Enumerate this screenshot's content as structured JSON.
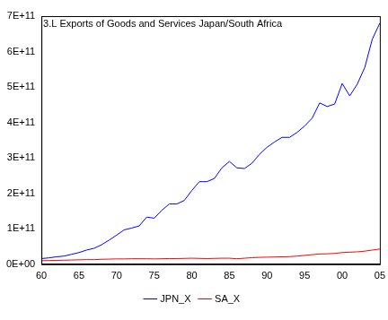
{
  "chart_data": {
    "type": "line",
    "title": "3.L Exports of Goods and Services Japan/South Africa",
    "categories": [
      "60",
      null,
      null,
      null,
      null,
      "65",
      null,
      null,
      null,
      null,
      "70",
      null,
      null,
      null,
      null,
      "75",
      null,
      null,
      null,
      null,
      "80",
      null,
      null,
      null,
      null,
      "85",
      null,
      null,
      null,
      null,
      "90",
      null,
      null,
      null,
      null,
      "95",
      null,
      null,
      null,
      null,
      "00",
      null,
      null,
      null,
      null,
      "05"
    ],
    "series": [
      {
        "name": "JPN_X",
        "color": "#0000ff",
        "values": [
          16000000000,
          18000000000,
          21000000000,
          23000000000,
          28000000000,
          33000000000,
          40000000000,
          45000000000,
          55000000000,
          68000000000,
          82000000000,
          97000000000,
          102000000000,
          108000000000,
          133000000000,
          130000000000,
          152000000000,
          170000000000,
          170000000000,
          180000000000,
          208000000000,
          233000000000,
          233000000000,
          242000000000,
          272000000000,
          290000000000,
          272000000000,
          270000000000,
          285000000000,
          310000000000,
          330000000000,
          345000000000,
          358000000000,
          358000000000,
          372000000000,
          390000000000,
          412000000000,
          455000000000,
          445000000000,
          452000000000,
          510000000000,
          475000000000,
          508000000000,
          555000000000,
          635000000000,
          680000000000
        ]
      },
      {
        "name": "SA_X",
        "color": "#ff0000",
        "values": [
          10000000000,
          10500000000,
          11000000000,
          11500000000,
          12000000000,
          12500000000,
          13000000000,
          13000000000,
          14000000000,
          14500000000,
          15000000000,
          15000000000,
          15500000000,
          15500000000,
          15500000000,
          15000000000,
          15500000000,
          16000000000,
          16000000000,
          16500000000,
          17000000000,
          16500000000,
          16000000000,
          16500000000,
          17000000000,
          17000000000,
          15500000000,
          17000000000,
          18500000000,
          19500000000,
          20000000000,
          20500000000,
          21000000000,
          21500000000,
          23000000000,
          25000000000,
          27000000000,
          29000000000,
          29500000000,
          30500000000,
          33000000000,
          34000000000,
          35000000000,
          37000000000,
          40000000000,
          43000000000
        ]
      }
    ],
    "ylim": [
      0,
      700000000000
    ],
    "yticks": [
      {
        "value": 0,
        "label": "0E+00"
      },
      {
        "value": 100000000000,
        "label": "1E+11"
      },
      {
        "value": 200000000000,
        "label": "2E+11"
      },
      {
        "value": 300000000000,
        "label": "3E+11"
      },
      {
        "value": 400000000000,
        "label": "4E+11"
      },
      {
        "value": 500000000000,
        "label": "5E+11"
      },
      {
        "value": 600000000000,
        "label": "6E+11"
      },
      {
        "value": 700000000000,
        "label": "7E+11"
      }
    ],
    "grid": false,
    "legend": "bottom"
  }
}
